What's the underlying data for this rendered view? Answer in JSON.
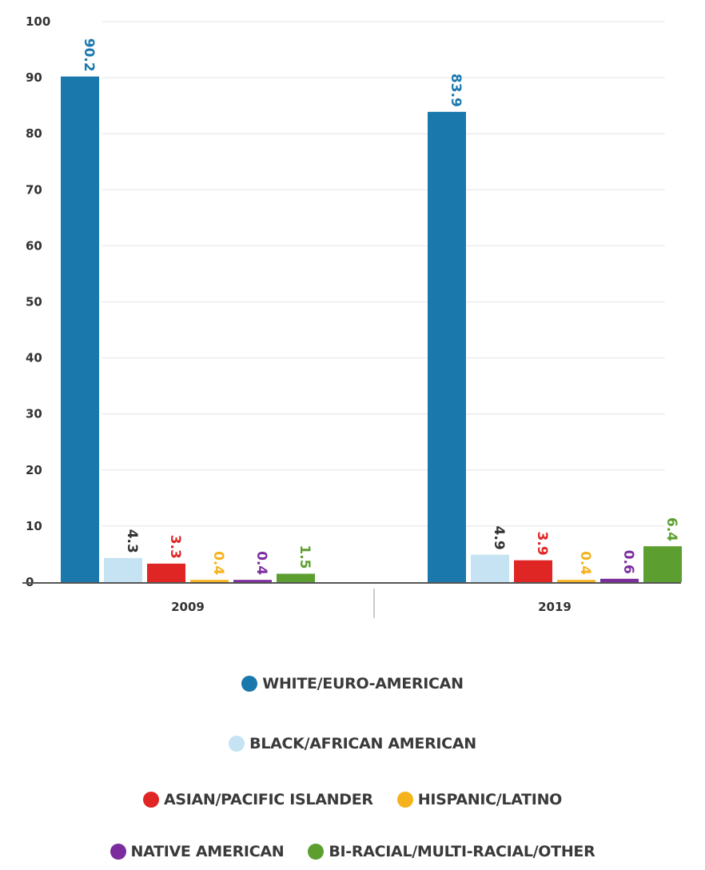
{
  "chart_data": {
    "type": "bar",
    "title": "",
    "xlabel": "",
    "ylabel": "",
    "categories": [
      "2009",
      "2019"
    ],
    "ylim": [
      0,
      100
    ],
    "yticks": [
      0,
      10,
      20,
      30,
      40,
      50,
      60,
      70,
      80,
      90,
      100
    ],
    "grid": true,
    "legend_position": "bottom",
    "series": [
      {
        "name": "WHITE/EURO-AMERICAN",
        "color": "#1a78ad",
        "label_color": "#1a78ad",
        "values": [
          90.2,
          83.9
        ],
        "labels": [
          "90.2",
          "83.9"
        ]
      },
      {
        "name": "BLACK/AFRICAN AMERICAN",
        "color": "#c5e3f2",
        "label_color": "#333333",
        "values": [
          4.3,
          4.9
        ],
        "labels": [
          "4.3",
          "4.9"
        ]
      },
      {
        "name": "ASIAN/PACIFIC ISLANDER",
        "color": "#e02525",
        "label_color": "#e02525",
        "values": [
          3.3,
          3.9
        ],
        "labels": [
          "3.3",
          "3.9"
        ]
      },
      {
        "name": "HISPANIC/LATINO",
        "color": "#f6b21b",
        "label_color": "#f6b21b",
        "values": [
          0.4,
          0.4
        ],
        "labels": [
          "0.4",
          "0.4"
        ]
      },
      {
        "name": "NATIVE AMERICAN",
        "color": "#7b2d9e",
        "label_color": "#7b2d9e",
        "values": [
          0.4,
          0.6
        ],
        "labels": [
          "0.4",
          "0.6"
        ]
      },
      {
        "name": "BI-RACIAL/MULTI-RACIAL/OTHER",
        "color": "#5c9e30",
        "label_color": "#5c9e30",
        "values": [
          1.5,
          6.4
        ],
        "labels": [
          "1.5",
          "6.4"
        ]
      }
    ]
  }
}
